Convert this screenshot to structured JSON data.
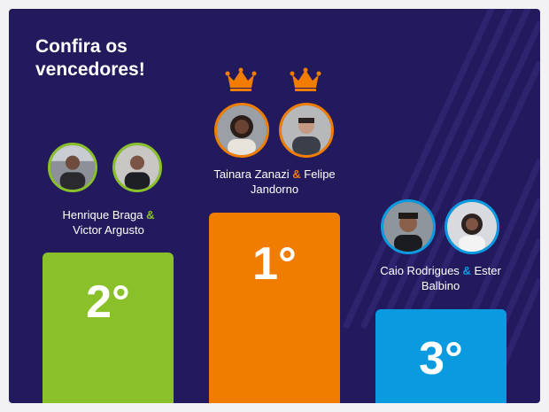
{
  "title": "Confira os vencedores!",
  "amp": "&",
  "podium": {
    "first": {
      "rank": "1°",
      "color": "#f07d00",
      "names": [
        "Tainara Zanazi",
        "Felipe Jandorno"
      ],
      "crowns": [
        "crown-icon",
        "crown-icon"
      ]
    },
    "second": {
      "rank": "2°",
      "color": "#8ac12a",
      "names": [
        "Henrique Braga",
        "Victor Argusto"
      ]
    },
    "third": {
      "rank": "3°",
      "color": "#0a9ae0",
      "names": [
        "Caio Rodrigues",
        "Ester Balbino"
      ]
    }
  }
}
